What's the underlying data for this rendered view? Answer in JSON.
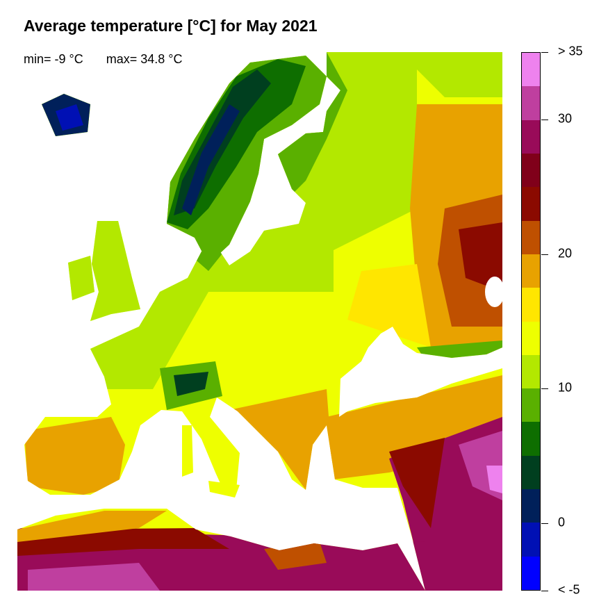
{
  "title": "Average temperature [°C] for May 2021",
  "stats": {
    "min": "min= -9 °C",
    "max": "max= 34.8 °C"
  },
  "legend": {
    "bins_top_to_bottom": [
      "#EE82EE",
      "#BF3F9F",
      "#990B59",
      "#80001A",
      "#8B0A00",
      "#BF5000",
      "#E8A200",
      "#FFE600",
      "#EEFF00",
      "#B3E800",
      "#5AB000",
      "#0E6E00",
      "#003F1F",
      "#00205A",
      "#0010B4",
      "#0000FF"
    ],
    "labels": [
      {
        "text": "> 35",
        "value": 35
      },
      {
        "text": "30",
        "value": 30
      },
      {
        "text": "20",
        "value": 20
      },
      {
        "text": "10",
        "value": 10
      },
      {
        "text": "0",
        "value": 0
      },
      {
        "text": "< -5",
        "value": -5
      }
    ],
    "range": [
      -5,
      35
    ]
  }
}
